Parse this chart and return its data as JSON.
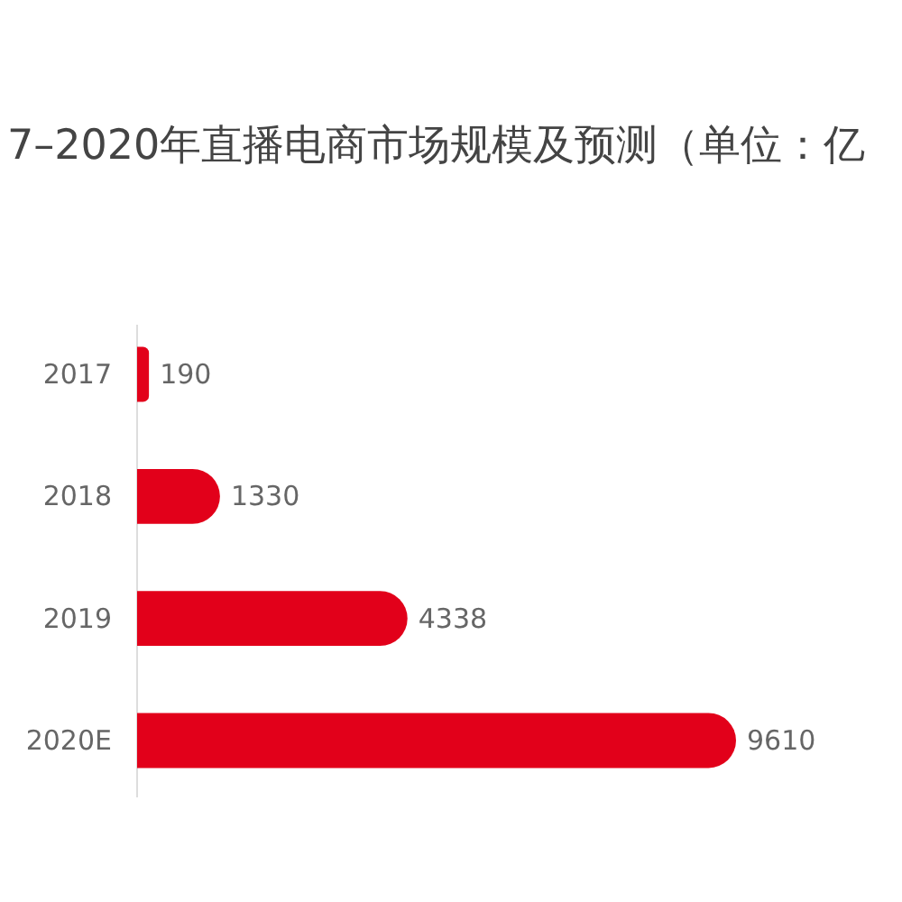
{
  "chart_data": {
    "type": "bar",
    "orientation": "horizontal",
    "title": "7–2020年直播电商市场规模及预测（单位：亿",
    "categories": [
      "2017",
      "2018",
      "2019",
      "2020E"
    ],
    "values": [
      190,
      1330,
      4338,
      9610
    ],
    "color": "#e2001a",
    "data_labels": true
  }
}
